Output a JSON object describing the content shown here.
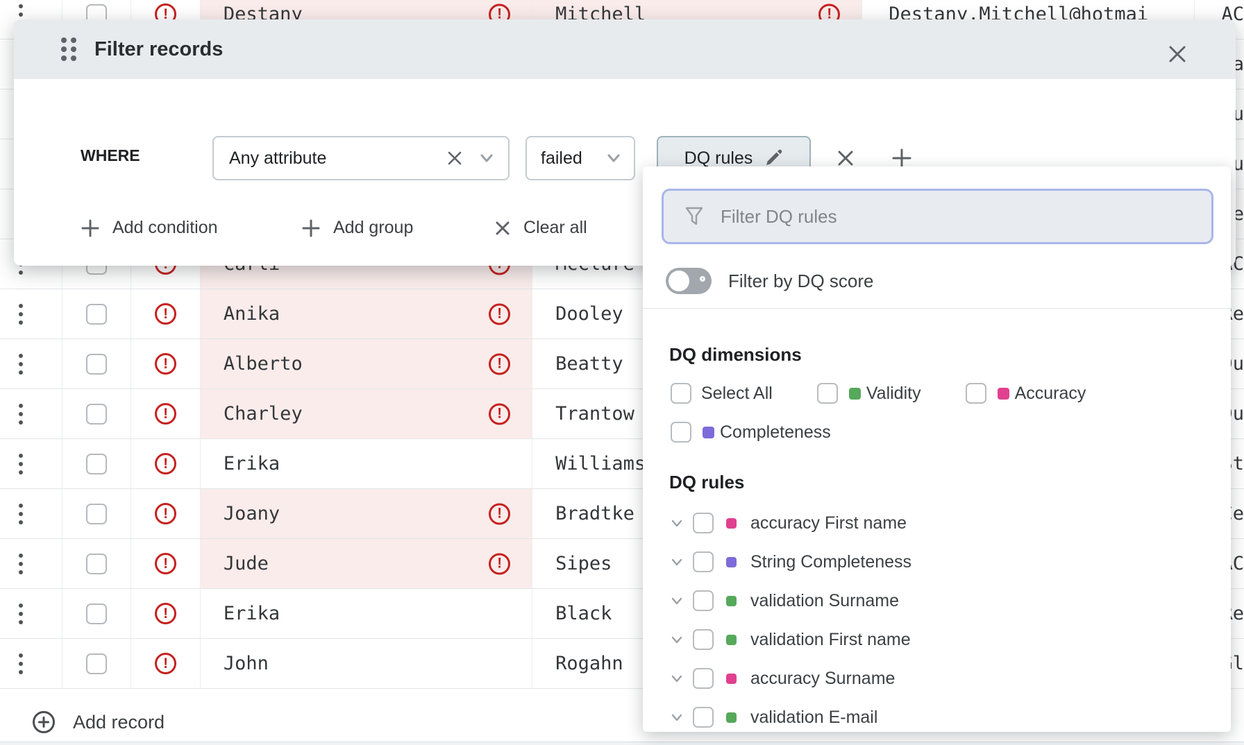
{
  "dialog": {
    "title": "Filter records",
    "where_label": "WHERE",
    "attribute_select": {
      "value": "Any attribute"
    },
    "operator_select": {
      "value": "failed"
    },
    "value_button": {
      "label": "DQ rules"
    },
    "actions": {
      "add_condition": "Add condition",
      "add_group": "Add group",
      "clear_all": "Clear all"
    }
  },
  "panel": {
    "search": {
      "placeholder": "Filter DQ rules"
    },
    "score_toggle": {
      "label": "Filter by DQ score",
      "state": "off"
    },
    "dimensions": {
      "heading": "DQ dimensions",
      "options": [
        {
          "label": "Select All",
          "color": null,
          "checked": false
        },
        {
          "label": "Validity",
          "color": "#56a85a",
          "checked": false
        },
        {
          "label": "Accuracy",
          "color": "#e0408f",
          "checked": false
        },
        {
          "label": "Completeness",
          "color": "#7d6bd9",
          "checked": false
        }
      ]
    },
    "rules": {
      "heading": "DQ rules",
      "items": [
        {
          "label": "accuracy First name",
          "color": "#e0408f",
          "checked": false
        },
        {
          "label": "String Completeness",
          "color": "#7d6bd9",
          "checked": false
        },
        {
          "label": "validation Surname",
          "color": "#56a85a",
          "checked": false
        },
        {
          "label": "validation First name",
          "color": "#56a85a",
          "checked": false
        },
        {
          "label": "accuracy Surname",
          "color": "#e0408f",
          "checked": false
        },
        {
          "label": "validation E-mail",
          "color": "#56a85a",
          "checked": false
        }
      ]
    }
  },
  "table": {
    "add_record_label": "Add record",
    "rows": [
      {
        "first_name": "Destany",
        "surname": "Mitchell",
        "email": "Destany.Mitchell@hotmai",
        "extra": "AC",
        "name_failed": true,
        "surname_failed": true,
        "row_error": true
      },
      {
        "first_name": "",
        "surname": "",
        "email": "",
        "extra": "Ra",
        "name_failed": false,
        "surname_failed": false,
        "row_error": true
      },
      {
        "first_name": "",
        "surname": "",
        "email": "",
        "extra": "Du",
        "name_failed": false,
        "surname_failed": false,
        "row_error": true
      },
      {
        "first_name": "",
        "surname": "",
        "email": "",
        "extra": "Du",
        "name_failed": false,
        "surname_failed": false,
        "row_error": true
      },
      {
        "first_name": "",
        "surname": "",
        "email": "",
        "extra": "Ce",
        "name_failed": false,
        "surname_failed": false,
        "row_error": true
      },
      {
        "first_name": "Carli",
        "surname": "McClure",
        "email": "",
        "extra": "AC",
        "name_failed": true,
        "surname_failed": false,
        "row_error": true
      },
      {
        "first_name": "Anika",
        "surname": "Dooley",
        "email": "",
        "extra": "Re",
        "name_failed": true,
        "surname_failed": false,
        "row_error": true
      },
      {
        "first_name": "Alberto",
        "surname": "Beatty",
        "email": "",
        "extra": "Du",
        "name_failed": true,
        "surname_failed": false,
        "row_error": true
      },
      {
        "first_name": "Charley",
        "surname": "Trantow",
        "email": "",
        "extra": "Du",
        "name_failed": true,
        "surname_failed": false,
        "row_error": true
      },
      {
        "first_name": "Erika",
        "surname": "Williams",
        "email": "",
        "extra": "St",
        "name_failed": false,
        "surname_failed": false,
        "row_error": true
      },
      {
        "first_name": "Joany",
        "surname": "Bradtke",
        "email": "",
        "extra": "Ce",
        "name_failed": true,
        "surname_failed": false,
        "row_error": true
      },
      {
        "first_name": "Jude",
        "surname": "Sipes",
        "email": "",
        "extra": "AC",
        "name_failed": true,
        "surname_failed": false,
        "row_error": true
      },
      {
        "first_name": "Erika",
        "surname": "Black",
        "email": "",
        "extra": "Re",
        "name_failed": false,
        "surname_failed": false,
        "row_error": true
      },
      {
        "first_name": "John",
        "surname": "Rogahn",
        "email": "",
        "extra": "Gl",
        "name_failed": false,
        "surname_failed": false,
        "row_error": true
      }
    ]
  },
  "colors": {
    "error_red": "#c5221f",
    "failed_cell_bg": "#faeceb",
    "accent_border": "#a9b6ea",
    "validity_green": "#56a85a",
    "accuracy_pink": "#e0408f",
    "completeness_purple": "#7d6bd9"
  }
}
